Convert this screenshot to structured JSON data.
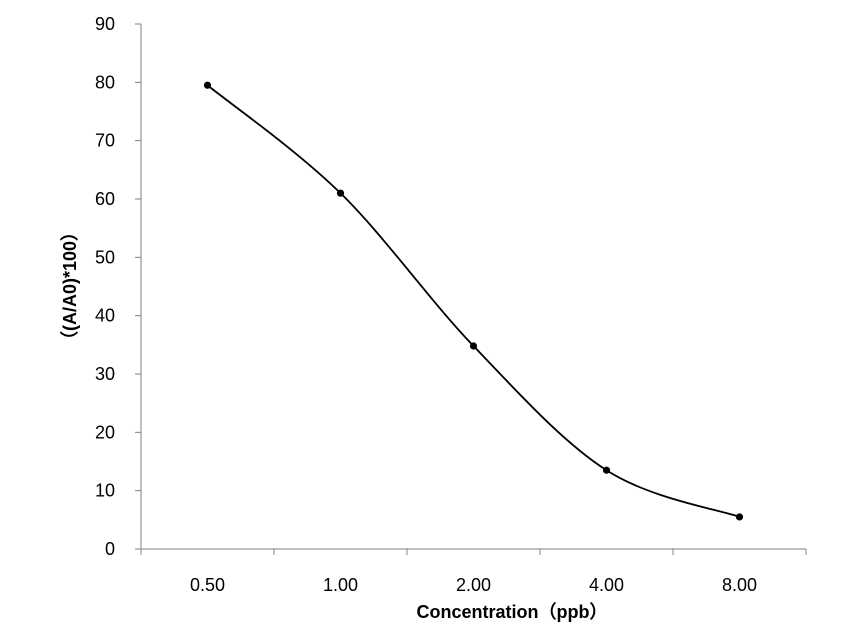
{
  "chart_data": {
    "type": "line",
    "categories": [
      "0.50",
      "1.00",
      "2.00",
      "4.00",
      "8.00"
    ],
    "series": [
      {
        "values": [
          79.5,
          61,
          34.8,
          13.5,
          5.5
        ]
      }
    ],
    "title": "",
    "xlabel": "Concentration（ppb）",
    "ylabel": "（(A/A0)*100）",
    "ylim": [
      0,
      90
    ],
    "yticks": [
      "0",
      "10",
      "20",
      "30",
      "40",
      "50",
      "60",
      "70",
      "80",
      "90"
    ],
    "grid": false,
    "smooth": true,
    "line_color": "#000000",
    "axis_color": "#808080"
  }
}
